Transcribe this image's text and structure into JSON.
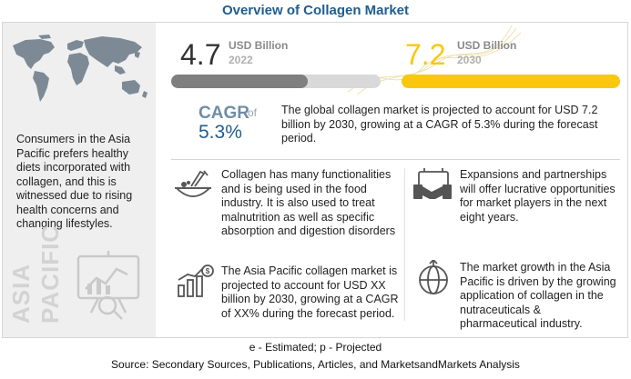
{
  "title": "Overview of Collagen Market",
  "left_panel": {
    "text": "Consumers in the Asia Pacific prefers healthy diets incorporated with collagen, and this is witnessed due to rising health concerns and changing lifestyles.",
    "region_line1": "ASIA",
    "region_line2": "PACIFIC",
    "icons": [
      "world-map-icon",
      "presentation-board-icon"
    ]
  },
  "chart_data": {
    "type": "bar",
    "categories": [
      "2022",
      "2030"
    ],
    "values": [
      4.7,
      7.2
    ],
    "value_labels": [
      "4.7",
      "7.2"
    ],
    "unit": "USD Billion",
    "xlim": [
      0,
      7.2
    ],
    "colors": [
      "#7f7f7f",
      "#f9c80e"
    ],
    "cagr_label": "CAGR",
    "cagr_of": "of",
    "cagr_value": "5.3%"
  },
  "summary": "The global collagen market is projected to account for USD 7.2 billion by 2030, growing at a CAGR of 5.3% during the forecast period.",
  "facts": [
    {
      "icon": "food-icon",
      "text": "Collagen has many functionalities and is being used in the food industry. It is also used to treat malnutrition as well as specific absorption and digestion disorders"
    },
    {
      "icon": "handshake-icon",
      "text": "Expansions and partnerships will offer lucrative opportunities for market players in the next eight years."
    },
    {
      "icon": "growth-chart-icon",
      "text": "The Asia Pacific collagen market is projected to account for USD XX billion by 2030, growing at a CAGR of XX% during the forecast period."
    },
    {
      "icon": "globe-growth-icon",
      "text": "The market growth in the Asia Pacific is driven by the growing application of collagen in the nutraceuticals  &  pharmaceutical industry."
    }
  ],
  "footnote": "e - Estimated; p - Projected",
  "source": "Source: Secondary Sources, Publications, Articles, and MarketsandMarkets Analysis"
}
